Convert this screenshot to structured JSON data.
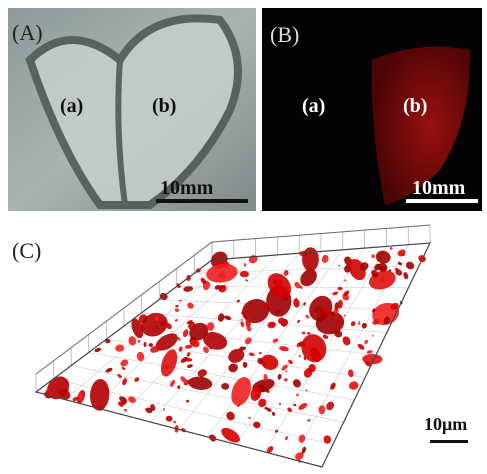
{
  "panel_a": {
    "label": "(A)",
    "regions": [
      "(a)",
      "(b)"
    ],
    "scale_bar": "10mm"
  },
  "panel_b": {
    "label": "(B)",
    "regions": [
      "(a)",
      "(b)"
    ],
    "scale_bar": "10mm"
  },
  "panel_c": {
    "label": "(C)",
    "scale_bar": "10μm"
  }
}
